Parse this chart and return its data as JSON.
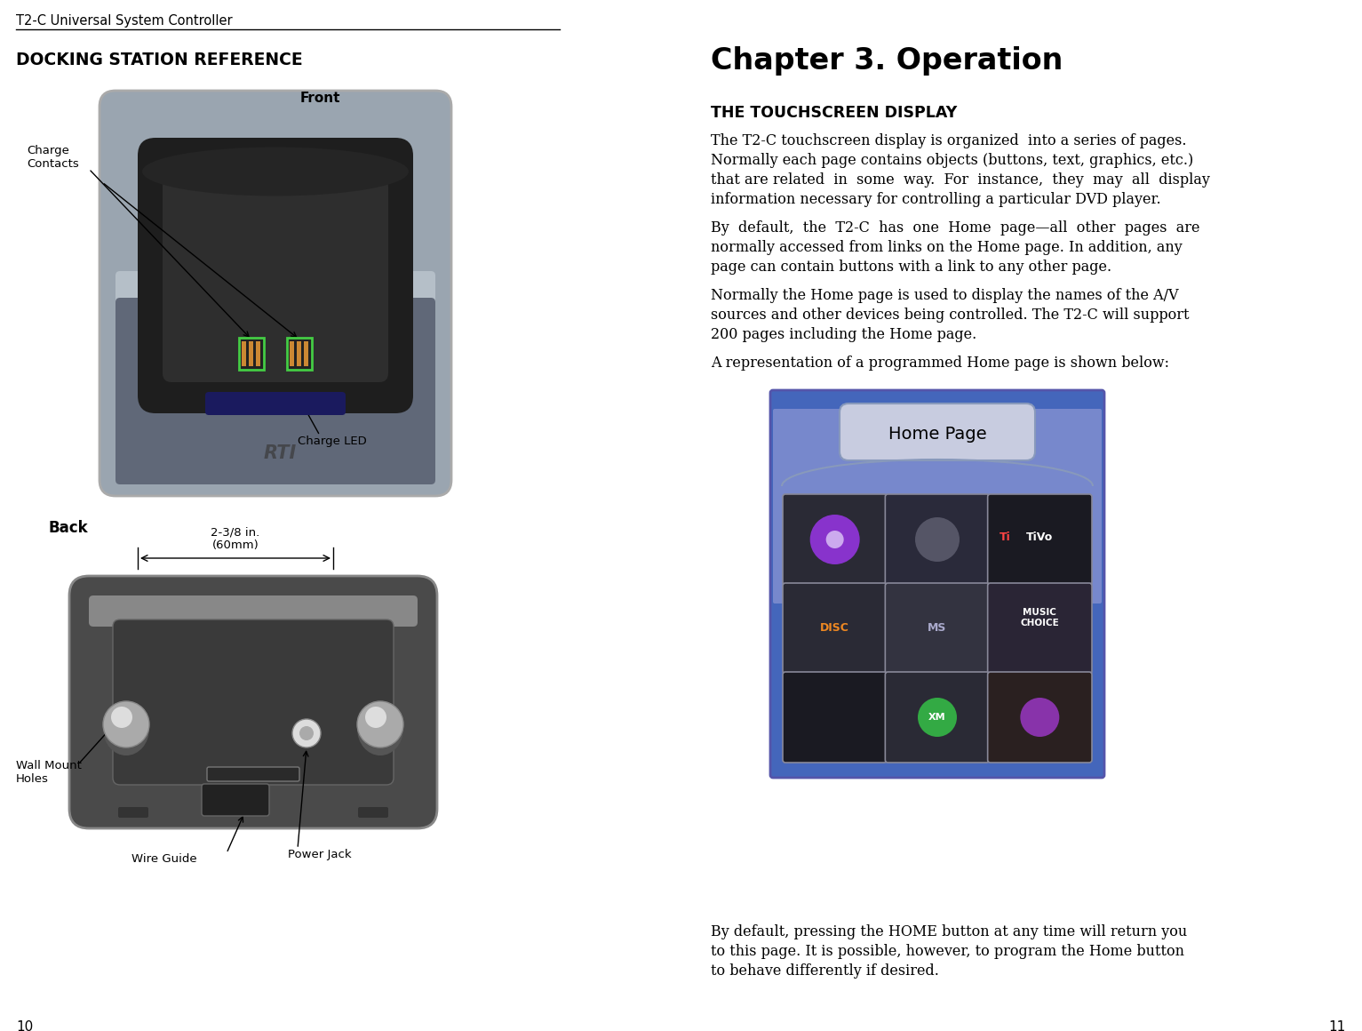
{
  "bg_color": "#ffffff",
  "left_header_text": "T2-C Universal System Controller",
  "left_section_title": "DOCKING STATION REFERENCE",
  "right_section_title": "Chapter 3. Operation",
  "right_subsection_title": "THE TOUCHSCREEN DISPLAY",
  "page_numbers": [
    "10",
    "11"
  ],
  "para1": [
    "The T2-C touchscreen display is organized  into a series of pages.",
    "Normally each page contains objects (buttons, text, graphics, etc.)",
    "that are related  in  some  way.  For  instance,  they  may  all  display",
    "information necessary for controlling a particular DVD player."
  ],
  "para2": [
    "By  default,  the  T2-C  has  one  Home  page—all  other  pages  are",
    "normally accessed from links on the Home page. In addition, any",
    "page can contain buttons with a link to any other page."
  ],
  "para3": [
    "Normally the Home page is used to display the names of the A/V",
    "sources and other devices being controlled. The T2-C will support",
    "200 pages including the Home page."
  ],
  "para4": "A representation of a programmed Home page is shown below:",
  "bottom_text": [
    "By default, pressing the HOME button at any time will return you",
    "to this page. It is possible, however, to program the Home button",
    "to behave differently if desired."
  ],
  "front_label": "Front",
  "back_label": "Back",
  "charge_contacts_label": "Charge\nContacts",
  "charge_led_label": "Charge LED",
  "wall_mount_label": "Wall Mount\nHoles",
  "wire_guide_label": "Wire Guide",
  "power_jack_label": "Power Jack",
  "dimension_label": "2-3/8 in.\n(60mm)",
  "home_page_label": "Home Page"
}
